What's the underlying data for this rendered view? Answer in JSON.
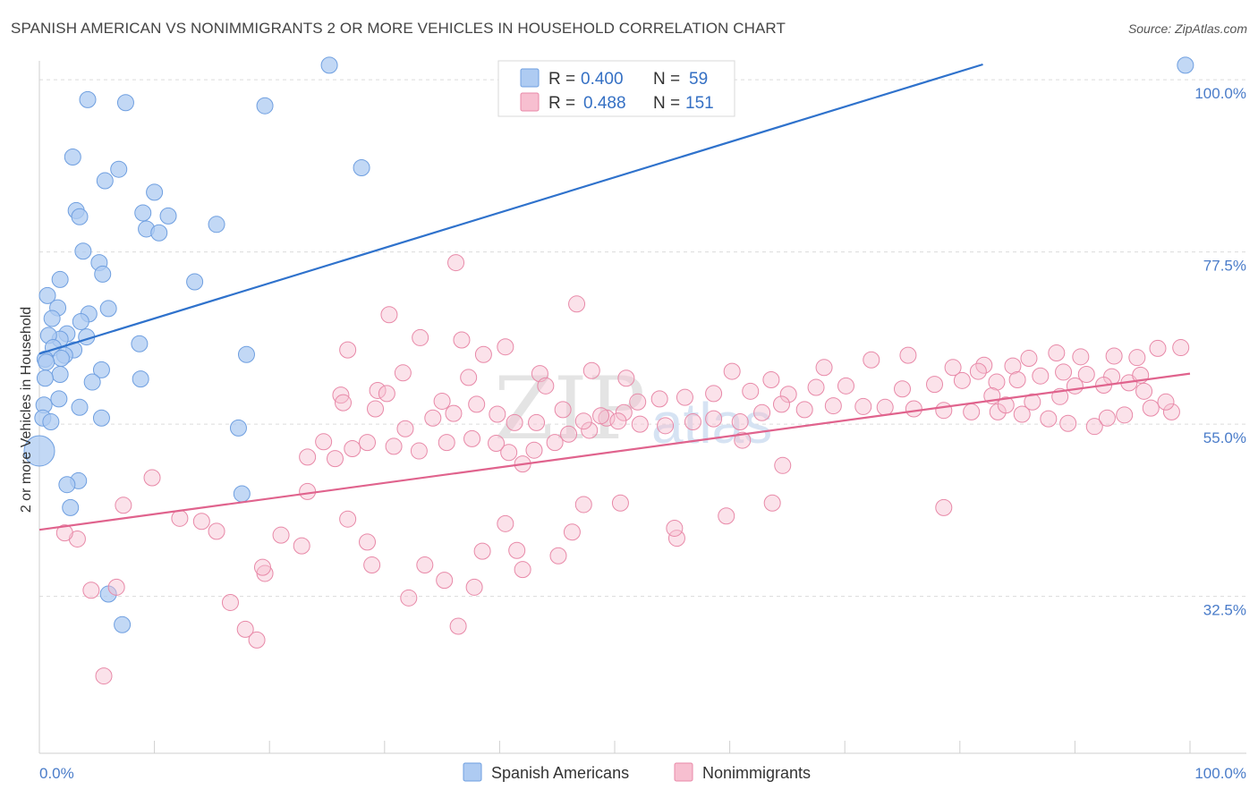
{
  "header": {
    "title": "SPANISH AMERICAN VS NONIMMIGRANTS 2 OR MORE VEHICLES IN HOUSEHOLD CORRELATION CHART",
    "source": "Source: ZipAtlas.com"
  },
  "watermark": {
    "zip": "ZIP",
    "atlas": "atlas"
  },
  "legend": {
    "r_label": "R =",
    "n_label": "N =",
    "items": [
      {
        "name": "Spanish Americans",
        "r": "0.400",
        "n": "59",
        "fill": "#aecbf2",
        "stroke": "#6f9fe0"
      },
      {
        "name": "Nonimmigrants",
        "r": "0.488",
        "n": "151",
        "fill": "#f7bfd0",
        "stroke": "#e889a8"
      }
    ]
  },
  "chart_data": {
    "type": "scatter",
    "title": "SPANISH AMERICAN VS NONIMMIGRANTS 2 OR MORE VEHICLES IN HOUSEHOLD CORRELATION CHART",
    "xlabel": "",
    "ylabel": "2 or more Vehicles in Household",
    "xlim": [
      0,
      100
    ],
    "ylim": [
      12,
      102
    ],
    "x_tick_labels": [
      "0.0%",
      "100.0%"
    ],
    "y_ticks": [
      32.5,
      55.0,
      77.5,
      100.0
    ],
    "y_tick_labels": [
      "32.5%",
      "55.0%",
      "77.5%",
      "100.0%"
    ],
    "grid": true,
    "series": [
      {
        "name": "Spanish Americans",
        "color": "#6f9fe0",
        "fill": "#aecbf2",
        "line_color": "#2f72cc",
        "trend": [
          [
            0,
            64.2
          ],
          [
            82,
            102
          ]
        ],
        "points": [
          [
            25.2,
            101.9
          ],
          [
            99.6,
            101.9
          ],
          [
            4.2,
            97.4
          ],
          [
            7.5,
            97.0
          ],
          [
            19.6,
            96.6
          ],
          [
            2.9,
            89.9
          ],
          [
            6.9,
            88.3
          ],
          [
            28.0,
            88.5
          ],
          [
            5.7,
            86.8
          ],
          [
            10.0,
            85.3
          ],
          [
            3.2,
            82.9
          ],
          [
            9.0,
            82.6
          ],
          [
            11.2,
            82.2
          ],
          [
            15.4,
            81.1
          ],
          [
            3.5,
            82.1
          ],
          [
            9.3,
            80.5
          ],
          [
            10.4,
            80.0
          ],
          [
            3.8,
            77.6
          ],
          [
            5.2,
            76.1
          ],
          [
            5.5,
            74.6
          ],
          [
            1.8,
            73.9
          ],
          [
            13.5,
            73.6
          ],
          [
            0.7,
            71.8
          ],
          [
            1.6,
            70.2
          ],
          [
            6.0,
            70.1
          ],
          [
            4.3,
            69.4
          ],
          [
            3.6,
            68.4
          ],
          [
            1.1,
            68.8
          ],
          [
            4.1,
            66.4
          ],
          [
            2.4,
            66.8
          ],
          [
            1.8,
            66.1
          ],
          [
            0.8,
            66.6
          ],
          [
            3.0,
            64.7
          ],
          [
            8.7,
            65.5
          ],
          [
            1.2,
            65.0
          ],
          [
            2.2,
            64.0
          ],
          [
            1.9,
            63.6
          ],
          [
            0.5,
            63.5
          ],
          [
            0.6,
            63.1
          ],
          [
            5.4,
            62.1
          ],
          [
            18.0,
            64.1
          ],
          [
            1.8,
            61.5
          ],
          [
            0.5,
            61.0
          ],
          [
            0.4,
            57.5
          ],
          [
            8.8,
            60.9
          ],
          [
            0.3,
            55.8
          ],
          [
            1.0,
            55.3
          ],
          [
            1.7,
            58.3
          ],
          [
            3.5,
            57.2
          ],
          [
            5.4,
            55.8
          ],
          [
            17.3,
            54.5
          ],
          [
            0.0,
            51.5
          ],
          [
            3.4,
            47.6
          ],
          [
            2.7,
            44.1
          ],
          [
            17.6,
            45.9
          ],
          [
            6.0,
            32.8
          ],
          [
            7.2,
            28.8
          ],
          [
            2.4,
            47.1
          ],
          [
            4.6,
            60.5
          ]
        ]
      },
      {
        "name": "Nonimmigrants",
        "color": "#e889a8",
        "fill": "#f7bfd0",
        "line_color": "#e0638d",
        "trend": [
          [
            0,
            41.2
          ],
          [
            100,
            61.6
          ]
        ],
        "points": [
          [
            36.2,
            76.1
          ],
          [
            46.7,
            70.7
          ],
          [
            30.4,
            69.3
          ],
          [
            36.7,
            66.0
          ],
          [
            33.1,
            66.3
          ],
          [
            40.5,
            65.1
          ],
          [
            26.8,
            64.7
          ],
          [
            38.6,
            64.1
          ],
          [
            43.5,
            61.6
          ],
          [
            31.6,
            61.7
          ],
          [
            37.3,
            61.1
          ],
          [
            29.4,
            59.4
          ],
          [
            26.2,
            58.8
          ],
          [
            30.2,
            59.0
          ],
          [
            26.4,
            57.8
          ],
          [
            29.2,
            57.0
          ],
          [
            35.0,
            58.0
          ],
          [
            44.0,
            60.0
          ],
          [
            48.0,
            62.0
          ],
          [
            51.0,
            61.0
          ],
          [
            60.2,
            61.9
          ],
          [
            68.2,
            62.4
          ],
          [
            72.3,
            63.4
          ],
          [
            75.5,
            64.0
          ],
          [
            79.4,
            62.4
          ],
          [
            86.0,
            63.6
          ],
          [
            88.4,
            64.3
          ],
          [
            90.5,
            63.8
          ],
          [
            93.4,
            63.9
          ],
          [
            97.2,
            64.9
          ],
          [
            99.2,
            65.0
          ],
          [
            95.4,
            63.7
          ],
          [
            84.6,
            62.6
          ],
          [
            82.1,
            62.7
          ],
          [
            81.6,
            61.9
          ],
          [
            80.2,
            60.7
          ],
          [
            77.8,
            60.2
          ],
          [
            75.0,
            59.6
          ],
          [
            70.1,
            60.0
          ],
          [
            67.5,
            59.8
          ],
          [
            65.1,
            58.9
          ],
          [
            63.6,
            60.8
          ],
          [
            61.8,
            59.3
          ],
          [
            58.6,
            59.0
          ],
          [
            56.1,
            58.5
          ],
          [
            53.9,
            58.3
          ],
          [
            52.0,
            57.9
          ],
          [
            50.8,
            56.5
          ],
          [
            49.3,
            55.8
          ],
          [
            47.8,
            54.2
          ],
          [
            46.0,
            53.7
          ],
          [
            44.8,
            52.6
          ],
          [
            43.0,
            51.6
          ],
          [
            42.0,
            49.8
          ],
          [
            40.8,
            51.3
          ],
          [
            39.7,
            52.5
          ],
          [
            37.6,
            53.1
          ],
          [
            35.4,
            52.6
          ],
          [
            33.0,
            51.5
          ],
          [
            30.8,
            52.1
          ],
          [
            28.5,
            52.6
          ],
          [
            27.2,
            51.8
          ],
          [
            25.7,
            50.5
          ],
          [
            24.7,
            52.7
          ],
          [
            23.3,
            50.7
          ],
          [
            31.8,
            54.4
          ],
          [
            34.2,
            55.8
          ],
          [
            36.0,
            56.4
          ],
          [
            38.0,
            57.6
          ],
          [
            39.8,
            56.3
          ],
          [
            41.3,
            55.2
          ],
          [
            43.2,
            55.2
          ],
          [
            45.5,
            56.9
          ],
          [
            47.3,
            55.4
          ],
          [
            48.8,
            56.1
          ],
          [
            50.3,
            55.4
          ],
          [
            52.2,
            55.0
          ],
          [
            54.4,
            54.8
          ],
          [
            56.8,
            55.3
          ],
          [
            58.6,
            55.7
          ],
          [
            60.9,
            55.3
          ],
          [
            62.8,
            56.5
          ],
          [
            64.5,
            57.6
          ],
          [
            66.5,
            56.9
          ],
          [
            69.0,
            57.4
          ],
          [
            71.6,
            57.3
          ],
          [
            73.5,
            57.2
          ],
          [
            76.0,
            57.0
          ],
          [
            78.6,
            56.8
          ],
          [
            81.0,
            56.6
          ],
          [
            83.3,
            56.6
          ],
          [
            85.4,
            56.3
          ],
          [
            87.7,
            55.7
          ],
          [
            89.4,
            55.1
          ],
          [
            91.7,
            54.7
          ],
          [
            92.8,
            55.8
          ],
          [
            94.3,
            56.2
          ],
          [
            96.6,
            57.1
          ],
          [
            98.4,
            56.6
          ],
          [
            97.9,
            57.9
          ],
          [
            96.0,
            59.3
          ],
          [
            94.7,
            60.4
          ],
          [
            93.2,
            61.2
          ],
          [
            91.0,
            61.5
          ],
          [
            89.0,
            61.8
          ],
          [
            87.0,
            61.3
          ],
          [
            85.0,
            60.8
          ],
          [
            83.2,
            60.5
          ],
          [
            82.8,
            58.7
          ],
          [
            84.0,
            57.5
          ],
          [
            86.3,
            57.9
          ],
          [
            88.7,
            58.6
          ],
          [
            90.0,
            60.0
          ],
          [
            92.5,
            60.1
          ],
          [
            95.7,
            61.4
          ],
          [
            78.6,
            44.1
          ],
          [
            63.7,
            44.7
          ],
          [
            55.4,
            40.1
          ],
          [
            59.7,
            43.0
          ],
          [
            55.2,
            41.4
          ],
          [
            50.5,
            44.7
          ],
          [
            47.3,
            44.5
          ],
          [
            46.3,
            40.9
          ],
          [
            45.1,
            37.8
          ],
          [
            42.0,
            36.0
          ],
          [
            41.5,
            38.5
          ],
          [
            40.5,
            42.0
          ],
          [
            38.5,
            38.4
          ],
          [
            37.8,
            33.7
          ],
          [
            36.4,
            28.6
          ],
          [
            35.2,
            34.6
          ],
          [
            33.5,
            36.6
          ],
          [
            32.1,
            32.3
          ],
          [
            28.9,
            36.6
          ],
          [
            28.5,
            39.6
          ],
          [
            26.8,
            42.6
          ],
          [
            23.3,
            46.2
          ],
          [
            22.8,
            39.1
          ],
          [
            21.0,
            40.5
          ],
          [
            19.6,
            35.5
          ],
          [
            19.4,
            36.3
          ],
          [
            18.9,
            26.8
          ],
          [
            17.9,
            28.2
          ],
          [
            16.6,
            31.7
          ],
          [
            15.4,
            41.0
          ],
          [
            12.2,
            42.7
          ],
          [
            9.8,
            48.0
          ],
          [
            7.3,
            44.4
          ],
          [
            6.7,
            33.7
          ],
          [
            5.6,
            22.1
          ],
          [
            4.5,
            33.3
          ],
          [
            3.3,
            40.0
          ],
          [
            2.2,
            40.8
          ],
          [
            14.1,
            42.3
          ],
          [
            61.1,
            52.9
          ],
          [
            64.6,
            49.6
          ]
        ]
      }
    ]
  }
}
